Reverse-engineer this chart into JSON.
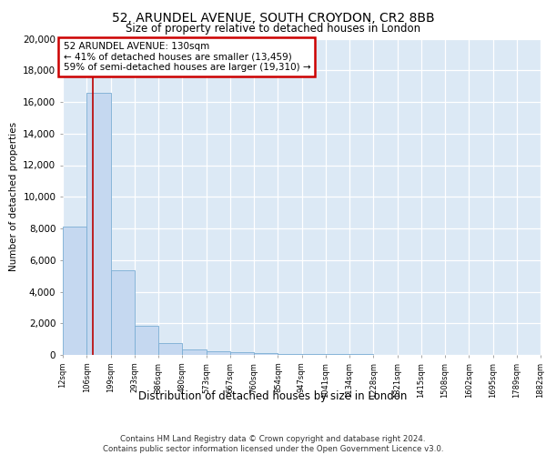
{
  "title1": "52, ARUNDEL AVENUE, SOUTH CROYDON, CR2 8BB",
  "title2": "Size of property relative to detached houses in London",
  "xlabel": "Distribution of detached houses by size in London",
  "ylabel": "Number of detached properties",
  "bar_color": "#c5d8f0",
  "bar_edge_color": "#7aadd4",
  "background_color": "#dce9f5",
  "grid_color": "#ffffff",
  "vline_color": "#bb0000",
  "vline_x": 130,
  "annotation_text": "52 ARUNDEL AVENUE: 130sqm\n← 41% of detached houses are smaller (13,459)\n59% of semi-detached houses are larger (19,310) →",
  "annotation_box_color": "#cc0000",
  "footer_text": "Contains HM Land Registry data © Crown copyright and database right 2024.\nContains public sector information licensed under the Open Government Licence v3.0.",
  "bins": [
    12,
    106,
    199,
    293,
    386,
    480,
    573,
    667,
    760,
    854,
    947,
    1041,
    1134,
    1228,
    1321,
    1415,
    1508,
    1602,
    1695,
    1789,
    1882
  ],
  "counts": [
    8100,
    16600,
    5350,
    1870,
    740,
    360,
    210,
    155,
    130,
    80,
    60,
    50,
    40,
    20,
    15,
    12,
    8,
    6,
    5,
    4
  ],
  "ylim": [
    0,
    20000
  ],
  "yticks": [
    0,
    2000,
    4000,
    6000,
    8000,
    10000,
    12000,
    14000,
    16000,
    18000,
    20000
  ]
}
